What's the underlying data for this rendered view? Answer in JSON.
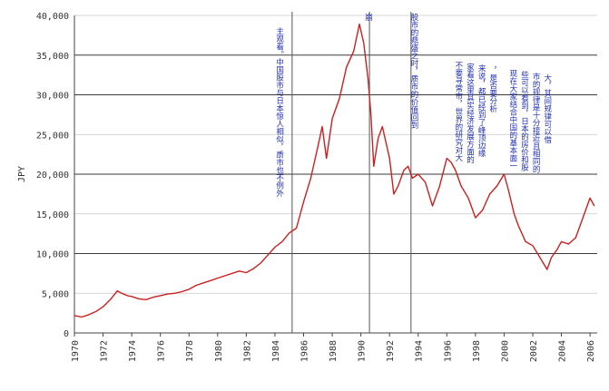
{
  "chart_data": {
    "type": "line",
    "title": "",
    "xlabel": "",
    "ylabel": "JPY",
    "ylim": [
      0,
      40000
    ],
    "xlim": [
      1970,
      2006.5
    ],
    "y_ticks": [
      {
        "value": 0,
        "label": "0"
      },
      {
        "value": 5000,
        "label": "5,000"
      },
      {
        "value": 10000,
        "label": "10,000"
      },
      {
        "value": 15000,
        "label": "15,000"
      },
      {
        "value": 20000,
        "label": "20,000"
      },
      {
        "value": 25000,
        "label": "25,000"
      },
      {
        "value": 30000,
        "label": "30,000"
      },
      {
        "value": 35000,
        "label": "35,000"
      },
      {
        "value": 40000,
        "label": "40,000"
      }
    ],
    "x_ticks": [
      1970,
      1972,
      1974,
      1976,
      1978,
      1980,
      1982,
      1984,
      1986,
      1988,
      1990,
      1992,
      1994,
      1996,
      1998,
      2000,
      2002,
      2004,
      2006
    ],
    "x_tick_labels": [
      "1970",
      "1972",
      "1974",
      "1976",
      "1978",
      "1980",
      "1982",
      "1984",
      "1986",
      "1988",
      "1990",
      "1992",
      "1994",
      "1996",
      "1998",
      "2000",
      "2002",
      "2004",
      "2006"
    ],
    "grid": "horizontal at 10,000 / 20,000 / 30,000 / 35,000 ; light at others",
    "line_color": "#cc1f1f",
    "annotation_color": "#1f2fb0",
    "series": [
      {
        "x": [
          1970,
          1970.5,
          1971,
          1971.5,
          1972,
          1972.5,
          1973,
          1973.3,
          1973.7,
          1974,
          1974.5,
          1975,
          1975.5,
          1976,
          1976.5,
          1977,
          1977.5,
          1978,
          1978.5,
          1979,
          1979.5,
          1980,
          1980.5,
          1981,
          1981.5,
          1982,
          1982.5,
          1983,
          1983.5,
          1984,
          1984.5,
          1985,
          1985.5,
          1986,
          1986.5,
          1987,
          1987.3,
          1987.6,
          1987.8,
          1988,
          1988.5,
          1989,
          1989.5,
          1989.9,
          1990.2,
          1990.5,
          1990.7,
          1990.9,
          1991.2,
          1991.5,
          1992,
          1992.3,
          1992.6,
          1993,
          1993.3,
          1993.6,
          1994,
          1994.5,
          1995,
          1995.5,
          1996,
          1996.3,
          1996.6,
          1997,
          1997.5,
          1998,
          1998.5,
          1999,
          1999.5,
          2000,
          2000.3,
          2000.7,
          2001,
          2001.5,
          2002,
          2002.5,
          2003,
          2003.3,
          2003.7,
          2004,
          2004.5,
          2005,
          2005.5,
          2006,
          2006.3
        ],
        "y": [
          2200,
          2000,
          2300,
          2700,
          3300,
          4200,
          5300,
          5000,
          4700,
          4600,
          4300,
          4200,
          4500,
          4700,
          4900,
          5000,
          5200,
          5500,
          6000,
          6300,
          6600,
          6900,
          7200,
          7500,
          7800,
          7600,
          8100,
          8800,
          9800,
          10800,
          11500,
          12600,
          13200,
          16500,
          19500,
          23500,
          26000,
          22000,
          24500,
          27000,
          29500,
          33500,
          35500,
          38900,
          36500,
          32000,
          27500,
          21000,
          24500,
          26000,
          22000,
          17500,
          18500,
          20500,
          21000,
          19500,
          20000,
          19000,
          16000,
          18500,
          22000,
          21500,
          20500,
          18500,
          17000,
          14500,
          15500,
          17500,
          18500,
          20000,
          18000,
          15000,
          13500,
          11500,
          11000,
          9500,
          8000,
          9500,
          10500,
          11500,
          11200,
          12000,
          14500,
          17000,
          16000
        ]
      }
    ],
    "vertical_lines_x": [
      1985.2,
      1990.6,
      1993.5
    ],
    "annotations": [
      {
        "x": 1984.3,
        "y_top": 38500,
        "text": "主观看。中国股市与日本惊人相似，质市也不例外"
      },
      {
        "x": 1990.5,
        "y_top": 40300,
        "text": "崩"
      },
      {
        "x": 1993.7,
        "y_top": 40300,
        "text": "股市的鼎盛之时，质市的价值回到"
      },
      {
        "x": 1996.8,
        "y_top": 34200,
        "text": "不要寻常市，世界的研究对大"
      },
      {
        "x": 1997.6,
        "y_top": 34000,
        "text": "家看这里其实经济发展方面的"
      },
      {
        "x": 1998.4,
        "y_top": 33800,
        "text": "来说，都已经到了峰顶边缘"
      },
      {
        "x": 1999.2,
        "y_top": 33600,
        "text": "，是否要分析"
      },
      {
        "x": 2000.6,
        "y_top": 33200,
        "text": "现在大家结合中国的基本面一"
      },
      {
        "x": 2001.4,
        "y_top": 33000,
        "text": "些可以看到，日本的房价和股"
      },
      {
        "x": 2002.2,
        "y_top": 32800,
        "text": "市的规律是十分接近且相同的"
      },
      {
        "x": 2003.0,
        "y_top": 32600,
        "text": "大，其间规律可以借"
      }
    ]
  }
}
